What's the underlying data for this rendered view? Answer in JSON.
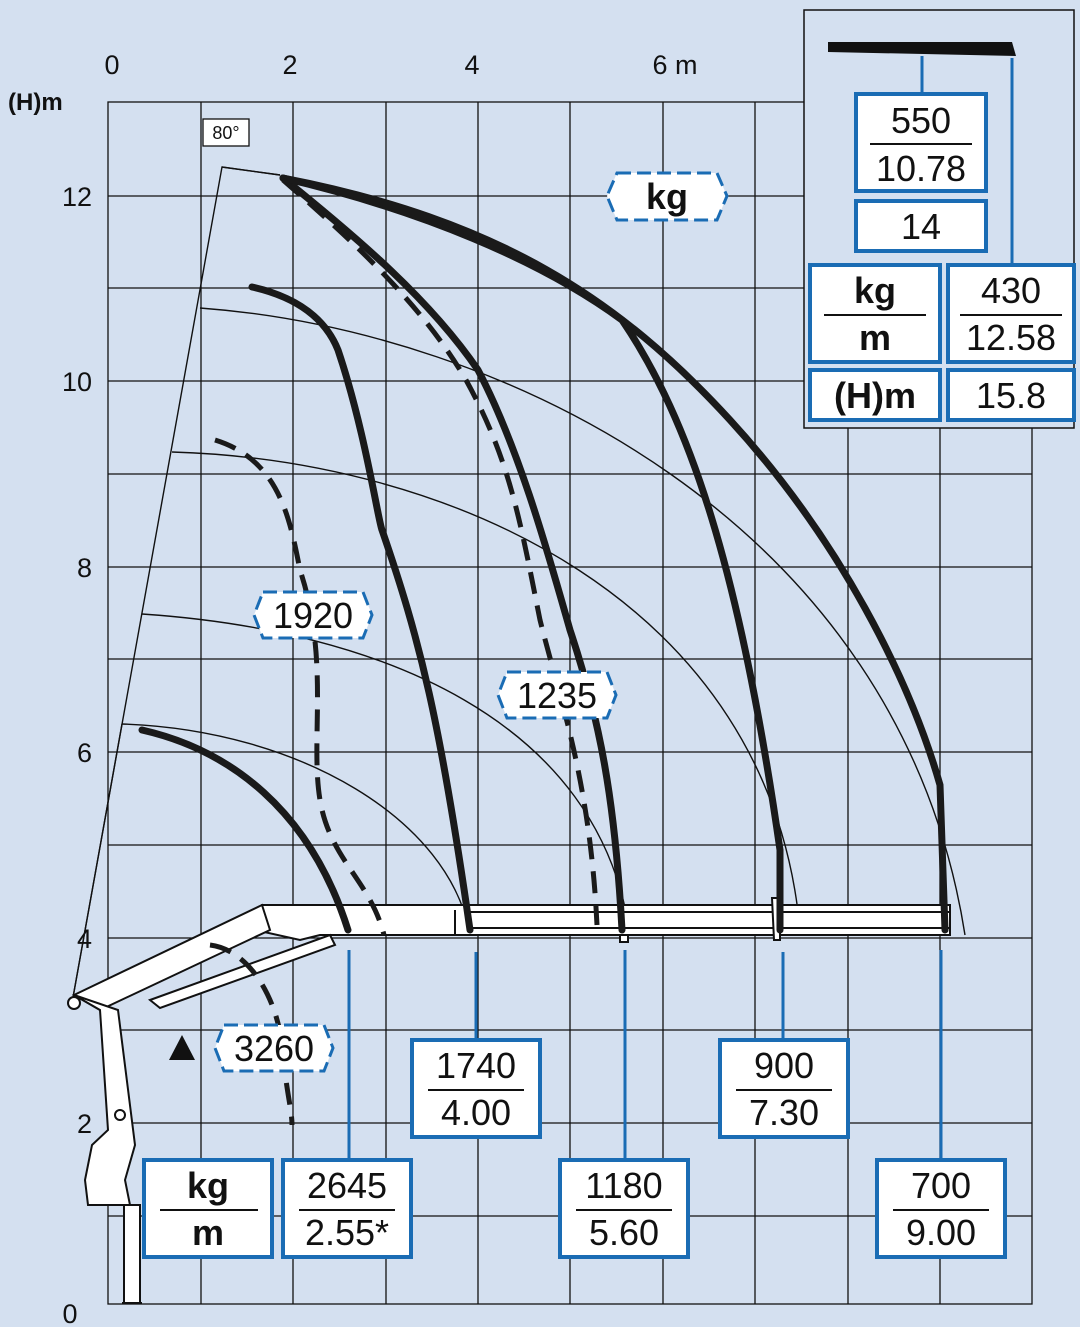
{
  "axes": {
    "x_ticks": [
      "0",
      "2",
      "4",
      "6 m"
    ],
    "y_ticks": [
      "12",
      "10",
      "8",
      "6",
      "4",
      "2",
      "0"
    ],
    "y_label": "(H)m"
  },
  "angle_label": "80°",
  "kg_badge": "kg",
  "capacity_badges": {
    "c1920": "1920",
    "c1235": "1235",
    "c3260": "3260"
  },
  "load_boxes": {
    "b1": {
      "kg": "2645",
      "m": "2.55*"
    },
    "b2": {
      "kg": "1740",
      "m": "4.00"
    },
    "b3": {
      "kg": "1180",
      "m": "5.60"
    },
    "b4": {
      "kg": "900",
      "m": "7.30"
    },
    "b5": {
      "kg": "700",
      "m": "9.00"
    }
  },
  "legend": {
    "kg": "kg",
    "m": "m"
  },
  "inset": {
    "jib_kg": "550",
    "jib_m": "10.78",
    "jib_count": "14",
    "unit_kg": "kg",
    "unit_m": "m",
    "tip_kg": "430",
    "tip_m": "12.58",
    "height_label": "(H)m",
    "height_value": "15.8"
  },
  "colors": {
    "background": "#d4e0f0",
    "box_border": "#1a6cb4",
    "curve": "#1a1a1a"
  }
}
